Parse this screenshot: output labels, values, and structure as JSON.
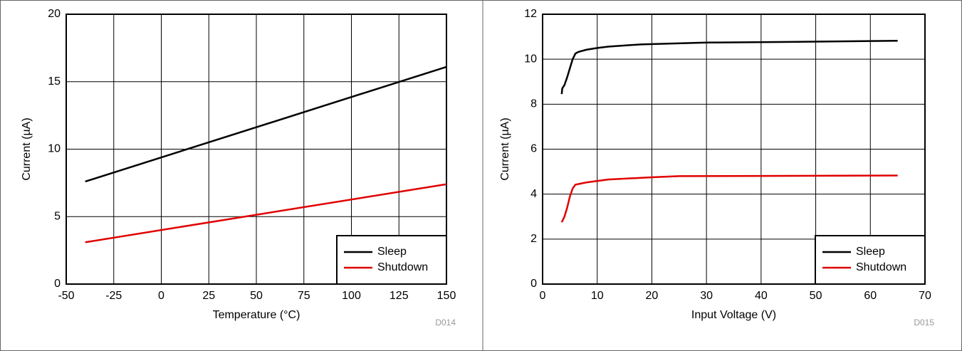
{
  "chart_data": [
    {
      "type": "line",
      "xlabel": "Temperature (°C)",
      "ylabel": "Current (µA)",
      "note": "D014",
      "xlim": [
        -50,
        150
      ],
      "xticks": [
        -50,
        -25,
        0,
        25,
        50,
        75,
        100,
        125,
        150
      ],
      "ylim": [
        0,
        20
      ],
      "yticks": [
        0,
        5,
        10,
        15,
        20
      ],
      "grid": true,
      "legend": "lower right",
      "series": [
        {
          "name": "Sleep",
          "color": "#000000",
          "x": [
            -40,
            150
          ],
          "values": [
            7.6,
            16.1
          ]
        },
        {
          "name": "Shutdown",
          "color": "#e00000",
          "x": [
            -40,
            150
          ],
          "values": [
            3.1,
            7.4
          ]
        }
      ]
    },
    {
      "type": "line",
      "xlabel": "Input Voltage (V)",
      "ylabel": "Current (µA)",
      "note": "D015",
      "xlim": [
        0,
        70
      ],
      "xticks": [
        0,
        10,
        20,
        30,
        40,
        50,
        60,
        70
      ],
      "ylim": [
        0,
        12
      ],
      "yticks": [
        0,
        2,
        4,
        6,
        8,
        10,
        12
      ],
      "grid": true,
      "legend": "lower right",
      "series": [
        {
          "name": "Sleep",
          "color": "#000000",
          "x": [
            3.5,
            3.6,
            4,
            4.5,
            5,
            5.5,
            6,
            6.5,
            8,
            10,
            12,
            18,
            30,
            45,
            65
          ],
          "values": [
            8.45,
            8.7,
            8.85,
            9.2,
            9.6,
            10.0,
            10.25,
            10.32,
            10.42,
            10.5,
            10.56,
            10.66,
            10.74,
            10.77,
            10.82
          ]
        },
        {
          "name": "Shutdown",
          "color": "#e00000",
          "x": [
            3.5,
            4,
            4.5,
            5,
            5.5,
            6,
            8,
            12,
            20,
            25,
            40,
            65
          ],
          "values": [
            2.75,
            3.0,
            3.4,
            3.9,
            4.25,
            4.42,
            4.52,
            4.65,
            4.75,
            4.8,
            4.81,
            4.83
          ]
        }
      ]
    }
  ]
}
